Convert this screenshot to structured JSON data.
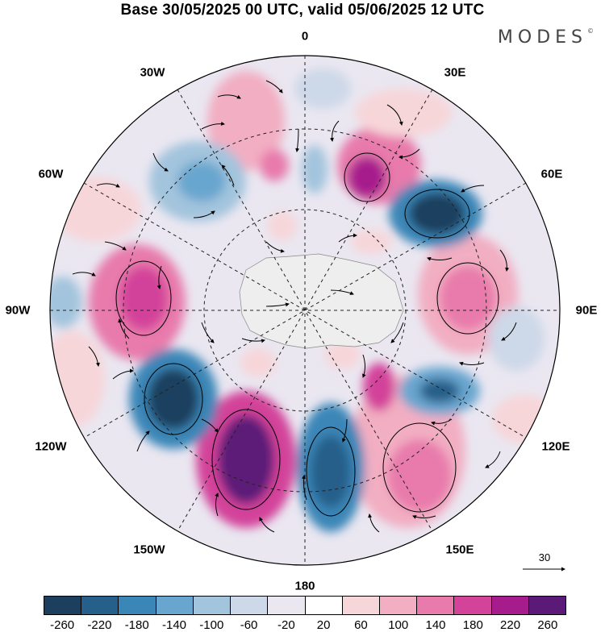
{
  "title": "Base 30/05/2025 00 UTC, valid 05/06/2025 12 UTC",
  "brand": "MODES",
  "brand_mark": "©",
  "longitude_labels": {
    "lon_0": "0",
    "lon_30e": "30E",
    "lon_60e": "60E",
    "lon_90e": "90E",
    "lon_120e": "120E",
    "lon_150e": "150E",
    "lon_180": "180",
    "lon_150w": "150W",
    "lon_120w": "120W",
    "lon_90w": "90W",
    "lon_60w": "60W",
    "lon_30w": "30W"
  },
  "vector_key": {
    "value": "30"
  },
  "colorbar": {
    "colors": [
      "#1d3f5e",
      "#255f8a",
      "#3a86b7",
      "#69a6cf",
      "#a3c4dd",
      "#cdd8e8",
      "#eae7f1",
      "#ffffff",
      "#f7d6d9",
      "#f2aec2",
      "#e87aac",
      "#d3439a",
      "#a71c8d",
      "#5c1a78"
    ],
    "tick_labels": [
      "-260",
      "-220",
      "-180",
      "-140",
      "-100",
      "-60",
      "-20",
      "20",
      "60",
      "100",
      "140",
      "180",
      "220",
      "260"
    ]
  }
}
